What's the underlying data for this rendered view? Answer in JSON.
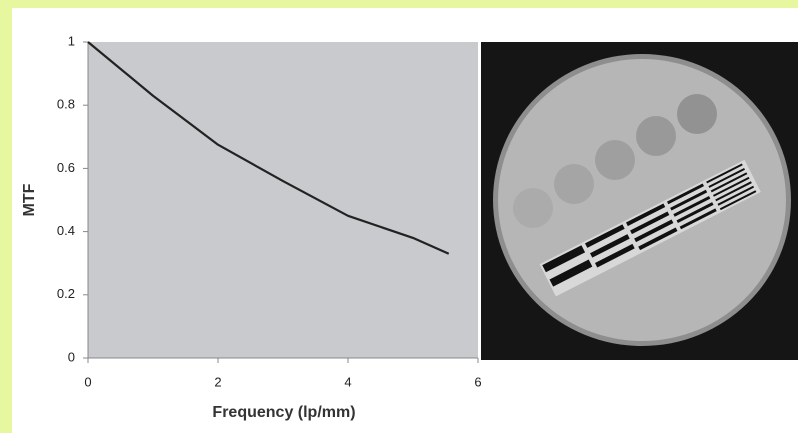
{
  "chart_data": {
    "type": "line",
    "xlabel": "Frequency (lp/mm)",
    "ylabel": "MTF",
    "x": [
      0,
      1,
      2,
      3,
      4,
      5,
      5.55
    ],
    "values": [
      1,
      0.83,
      0.675,
      0.56,
      0.45,
      0.38,
      0.33
    ],
    "color": "#222222",
    "xlim": [
      0,
      6
    ],
    "xticks": [
      0,
      2,
      4,
      6
    ],
    "ylim": [
      0,
      1
    ],
    "yticks": [
      0,
      0.2,
      0.4,
      0.6,
      0.8,
      1
    ]
  }
}
